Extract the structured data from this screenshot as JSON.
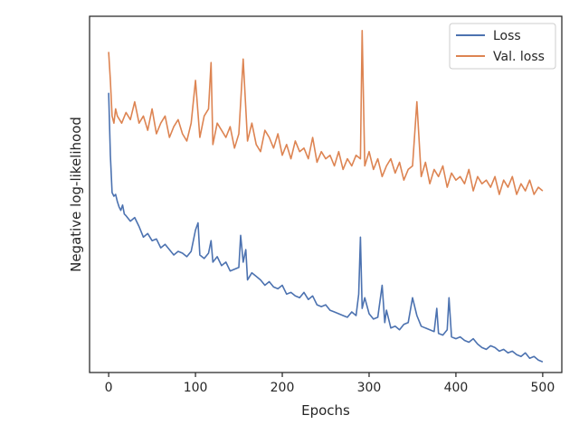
{
  "chart_data": {
    "type": "line",
    "title": "",
    "xlabel": "Epochs",
    "ylabel": "Negative log-likelihood",
    "xlim": [
      -22,
      522
    ],
    "ylim": [
      0,
      1
    ],
    "y_ticks_labeled": false,
    "x_ticks": [
      0,
      100,
      200,
      300,
      400,
      500
    ],
    "x_tick_labels": [
      "0",
      "100",
      "200",
      "300",
      "400",
      "500"
    ],
    "grid": false,
    "legend_position": "top-right",
    "series": [
      {
        "name": "Loss",
        "color": "#4c72b0",
        "x": [
          0,
          2,
          4,
          6,
          8,
          10,
          12,
          14,
          16,
          18,
          20,
          25,
          30,
          35,
          40,
          45,
          50,
          55,
          60,
          65,
          70,
          75,
          80,
          85,
          90,
          95,
          100,
          103,
          105,
          110,
          115,
          118,
          120,
          125,
          130,
          135,
          140,
          145,
          150,
          152,
          155,
          158,
          160,
          165,
          170,
          175,
          180,
          185,
          190,
          195,
          200,
          205,
          210,
          215,
          220,
          225,
          230,
          235,
          240,
          245,
          250,
          255,
          260,
          265,
          270,
          275,
          280,
          285,
          288,
          290,
          292,
          295,
          300,
          305,
          310,
          315,
          318,
          320,
          325,
          330,
          335,
          340,
          345,
          350,
          355,
          360,
          365,
          370,
          375,
          378,
          380,
          385,
          390,
          392,
          395,
          400,
          405,
          410,
          415,
          420,
          425,
          430,
          435,
          440,
          445,
          450,
          455,
          460,
          465,
          470,
          475,
          480,
          485,
          490,
          495,
          500
        ],
        "y": [
          0.785,
          0.61,
          0.505,
          0.495,
          0.5,
          0.48,
          0.465,
          0.455,
          0.47,
          0.445,
          0.44,
          0.425,
          0.435,
          0.41,
          0.38,
          0.39,
          0.37,
          0.375,
          0.35,
          0.36,
          0.345,
          0.33,
          0.34,
          0.335,
          0.325,
          0.34,
          0.4,
          0.42,
          0.33,
          0.32,
          0.335,
          0.37,
          0.31,
          0.325,
          0.3,
          0.31,
          0.285,
          0.29,
          0.295,
          0.385,
          0.31,
          0.345,
          0.26,
          0.28,
          0.27,
          0.26,
          0.245,
          0.255,
          0.24,
          0.235,
          0.245,
          0.22,
          0.225,
          0.215,
          0.21,
          0.225,
          0.205,
          0.215,
          0.19,
          0.185,
          0.19,
          0.175,
          0.17,
          0.165,
          0.16,
          0.155,
          0.17,
          0.16,
          0.22,
          0.38,
          0.18,
          0.21,
          0.165,
          0.15,
          0.155,
          0.245,
          0.14,
          0.175,
          0.125,
          0.13,
          0.12,
          0.135,
          0.14,
          0.21,
          0.16,
          0.13,
          0.125,
          0.12,
          0.115,
          0.18,
          0.11,
          0.105,
          0.12,
          0.21,
          0.1,
          0.095,
          0.1,
          0.09,
          0.085,
          0.095,
          0.08,
          0.07,
          0.065,
          0.075,
          0.07,
          0.06,
          0.065,
          0.055,
          0.06,
          0.05,
          0.045,
          0.055,
          0.04,
          0.045,
          0.035,
          0.03
        ]
      },
      {
        "name": "Val. loss",
        "color": "#dd8452",
        "x": [
          0,
          2,
          4,
          6,
          8,
          10,
          15,
          20,
          25,
          30,
          35,
          40,
          45,
          50,
          55,
          60,
          65,
          70,
          75,
          80,
          85,
          90,
          95,
          100,
          105,
          110,
          115,
          118,
          120,
          125,
          130,
          135,
          140,
          145,
          150,
          155,
          160,
          165,
          170,
          175,
          180,
          185,
          190,
          195,
          200,
          205,
          210,
          215,
          220,
          225,
          230,
          235,
          240,
          245,
          250,
          255,
          260,
          265,
          270,
          275,
          280,
          285,
          290,
          292,
          295,
          300,
          305,
          310,
          315,
          320,
          325,
          330,
          335,
          340,
          345,
          350,
          355,
          360,
          365,
          370,
          375,
          380,
          385,
          390,
          395,
          400,
          405,
          410,
          415,
          420,
          425,
          430,
          435,
          440,
          445,
          450,
          455,
          460,
          465,
          470,
          475,
          480,
          485,
          490,
          495,
          500
        ],
        "y": [
          0.9,
          0.82,
          0.72,
          0.7,
          0.74,
          0.72,
          0.7,
          0.73,
          0.71,
          0.76,
          0.7,
          0.72,
          0.68,
          0.74,
          0.67,
          0.7,
          0.72,
          0.66,
          0.69,
          0.71,
          0.67,
          0.65,
          0.7,
          0.82,
          0.66,
          0.72,
          0.74,
          0.87,
          0.64,
          0.7,
          0.68,
          0.66,
          0.69,
          0.63,
          0.67,
          0.88,
          0.65,
          0.7,
          0.64,
          0.62,
          0.68,
          0.66,
          0.63,
          0.67,
          0.61,
          0.64,
          0.6,
          0.65,
          0.62,
          0.63,
          0.6,
          0.66,
          0.59,
          0.62,
          0.6,
          0.61,
          0.58,
          0.62,
          0.57,
          0.6,
          0.58,
          0.61,
          0.6,
          0.96,
          0.58,
          0.62,
          0.57,
          0.6,
          0.55,
          0.58,
          0.6,
          0.56,
          0.59,
          0.54,
          0.57,
          0.58,
          0.76,
          0.55,
          0.59,
          0.53,
          0.57,
          0.55,
          0.58,
          0.52,
          0.56,
          0.54,
          0.55,
          0.53,
          0.57,
          0.51,
          0.55,
          0.53,
          0.54,
          0.52,
          0.55,
          0.5,
          0.54,
          0.52,
          0.55,
          0.5,
          0.53,
          0.51,
          0.54,
          0.5,
          0.52,
          0.51
        ]
      }
    ]
  }
}
